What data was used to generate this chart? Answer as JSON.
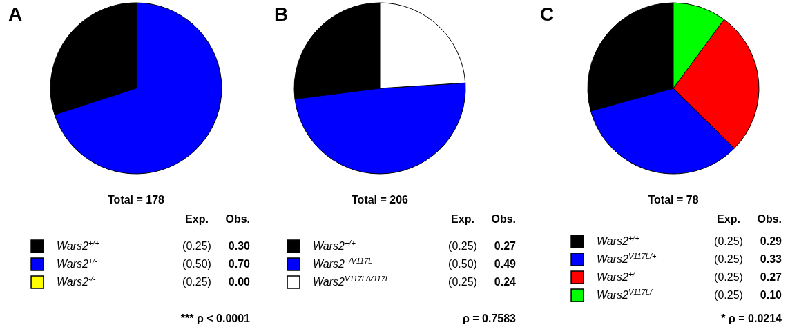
{
  "chart_data": [
    {
      "type": "pie",
      "title": "A",
      "categories": [
        "Wars2$^{+/+}$",
        "Wars2$^{+/-}$",
        "Wars2$^{-/-}$"
      ],
      "values": [
        0.3,
        0.7,
        0.0
      ],
      "value_labels": [
        "0.30",
        "0.70",
        "0.00"
      ],
      "colors": [
        "#000000",
        "#0000ff",
        "#ffff00"
      ],
      "legend": "bottom",
      "annotations": [
        "Total = 178",
        "Exp.",
        "Obs.",
        "(0.25)",
        "(0.50)",
        "(0.25)",
        "*** ρ < 0.0001"
      ]
    },
    {
      "type": "pie",
      "title": "B",
      "categories": [
        "Wars2$^{+/+}$",
        "Wars2$^{+/V117L}$",
        "Wars2$^{V117L/V117L}$"
      ],
      "values": [
        0.27,
        0.49,
        0.24
      ],
      "value_labels": [
        "0.27",
        "0.49",
        "0.24"
      ],
      "colors": [
        "#000000",
        "#0000ff",
        "#ffffff"
      ],
      "legend": "bottom",
      "annotations": [
        "Total = 206",
        "Exp.",
        "Obs.",
        "(0.25)",
        "(0.50)",
        "(0.25)",
        "ρ = 0.7583"
      ]
    },
    {
      "type": "pie",
      "title": "C",
      "categories": [
        "Wars2$^{+/+}$",
        "Wars2$^{V117L/+}$",
        "Wars2$^{+/-}$",
        "Wars2$^{V117L/-}$"
      ],
      "values": [
        0.29,
        0.33,
        0.27,
        0.1
      ],
      "value_labels": [
        "0.29",
        "0.33",
        "0.27",
        "0.10"
      ],
      "colors": [
        "#000000",
        "#0000ff",
        "#ff0000",
        "#00ff00"
      ],
      "legend": "bottom",
      "annotations": [
        "Total = 78",
        "Exp.",
        "Obs.",
        "(0.25)",
        "(0.25)",
        "(0.25)",
        "(0.25)",
        "* ρ = 0.0214"
      ]
    }
  ]
}
